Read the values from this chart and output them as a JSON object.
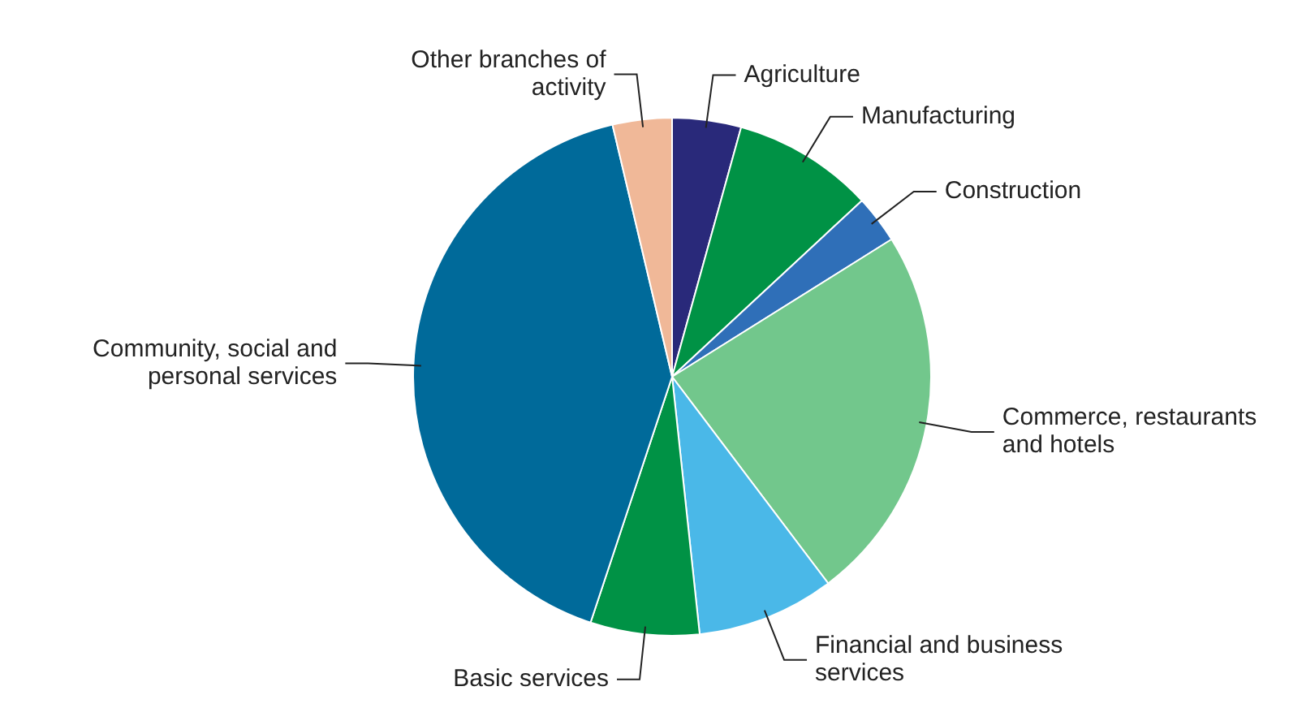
{
  "chart_data": {
    "type": "pie",
    "categories": [
      "Agriculture",
      "Manufacturing",
      "Construction",
      "Commerce, restaurants and hotels",
      "Financial and business services",
      "Basic services",
      "Community, social and personal services",
      "Other branches of activity"
    ],
    "values": [
      4.3,
      8.8,
      3,
      23.6,
      8.6,
      6.8,
      41.2,
      3.7
    ],
    "colors": [
      "#29297a",
      "#009245",
      "#2f6fb8",
      "#72c78c",
      "#4ab8e8",
      "#009245",
      "#006a9a",
      "#f0b898"
    ],
    "legend": false
  }
}
